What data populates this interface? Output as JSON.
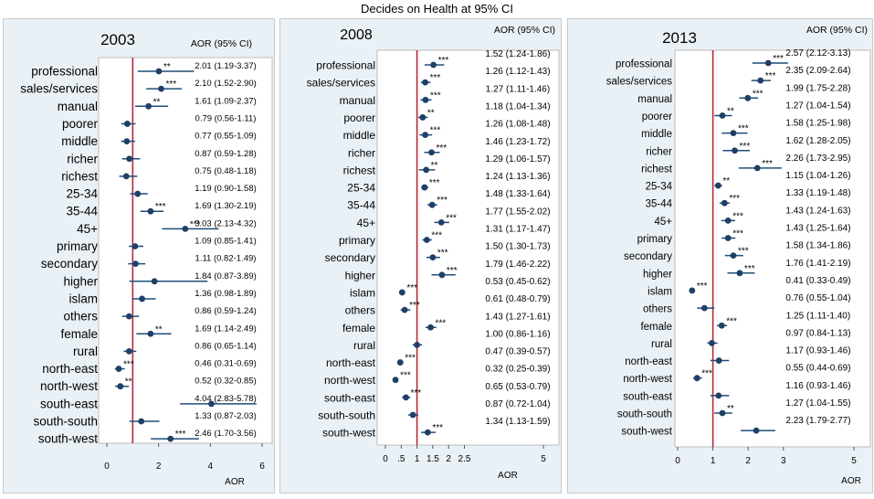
{
  "title": "Decides on Health at 95% CI",
  "chart_data": [
    {
      "type": "forest",
      "panel_title": "2003",
      "ci_header": "AOR (95% CI)",
      "xlabel": "AOR",
      "xlim": [
        0,
        6
      ],
      "xticks": [
        "0",
        "2",
        "4",
        "6"
      ],
      "reference_line": 1,
      "categories": [
        "professional",
        "sales/services",
        "manual",
        "poorer",
        "middle",
        "richer",
        "richest",
        "25-34",
        "35-44",
        "45+",
        "primary",
        "secondary",
        "higher",
        "islam",
        "others",
        "female",
        "rural",
        "north-east",
        "north-west",
        "south-east",
        "south-south",
        "south-west"
      ],
      "aor": [
        2.01,
        2.1,
        1.61,
        0.79,
        0.77,
        0.87,
        0.75,
        1.19,
        1.69,
        3.03,
        1.09,
        1.11,
        1.84,
        1.36,
        0.86,
        1.69,
        0.86,
        0.46,
        0.52,
        4.04,
        1.33,
        2.46
      ],
      "lower": [
        1.19,
        1.52,
        1.09,
        0.56,
        0.55,
        0.59,
        0.48,
        0.9,
        1.3,
        2.13,
        0.85,
        0.82,
        0.87,
        0.98,
        0.59,
        1.14,
        0.65,
        0.31,
        0.32,
        2.83,
        0.87,
        1.7
      ],
      "upper": [
        3.37,
        2.9,
        2.37,
        1.11,
        1.09,
        1.28,
        1.18,
        1.58,
        2.19,
        4.32,
        1.41,
        1.49,
        3.89,
        1.89,
        1.24,
        2.49,
        1.14,
        0.69,
        0.85,
        5.78,
        2.03,
        3.56
      ],
      "stars": [
        "**",
        "***",
        "**",
        "",
        "",
        "",
        "",
        "",
        "***",
        "***",
        "",
        "",
        "",
        "",
        "",
        "**",
        "",
        "***",
        "**",
        "",
        "",
        "***"
      ],
      "ci_labels": [
        "2.01 (1.19-3.37)",
        "2.10 (1.52-2.90)",
        "1.61 (1.09-2.37)",
        "0.79 (0.56-1.11)",
        "0.77 (0.55-1.09)",
        "0.87 (0.59-1.28)",
        "0.75 (0.48-1.18)",
        "1.19 (0.90-1.58)",
        "1.69 (1.30-2.19)",
        "3.03 (2.13-4.32)",
        "1.09 (0.85-1.41)",
        "1.11 (0.82-1.49)",
        "1.84 (0.87-3.89)",
        "1.36 (0.98-1.89)",
        "0.86 (0.59-1.24)",
        "1.69 (1.14-2.49)",
        "0.86 (0.65-1.14)",
        "0.46 (0.31-0.69)",
        "0.52 (0.32-0.85)",
        "4.04 (2.83-5.78)",
        "1.33 (0.87-2.03)",
        "2.46 (1.70-3.56)"
      ]
    },
    {
      "type": "forest",
      "panel_title": "2008",
      "ci_header": "AOR (95% CI)",
      "xlabel": "AOR",
      "xlim": [
        0,
        5
      ],
      "xticks": [
        "0",
        ".5",
        "1",
        "1.5",
        "2",
        "2.5",
        "5"
      ],
      "reference_line": 1,
      "categories": [
        "professional",
        "sales/services",
        "manual",
        "poorer",
        "middle",
        "richer",
        "richest",
        "25-34",
        "35-44",
        "45+",
        "primary",
        "secondary",
        "higher",
        "islam",
        "others",
        "female",
        "rural",
        "north-east",
        "north-west",
        "south-east",
        "south-south",
        "south-west"
      ],
      "aor": [
        1.52,
        1.26,
        1.27,
        1.18,
        1.26,
        1.46,
        1.29,
        1.24,
        1.48,
        1.77,
        1.31,
        1.5,
        1.79,
        0.53,
        0.61,
        1.43,
        1.0,
        0.47,
        0.32,
        0.65,
        0.87,
        1.34
      ],
      "lower": [
        1.24,
        1.12,
        1.11,
        1.04,
        1.08,
        1.23,
        1.06,
        1.13,
        1.33,
        1.55,
        1.17,
        1.3,
        1.46,
        0.45,
        0.48,
        1.27,
        0.86,
        0.39,
        0.25,
        0.53,
        0.72,
        1.13
      ],
      "upper": [
        1.86,
        1.43,
        1.46,
        1.34,
        1.48,
        1.72,
        1.57,
        1.36,
        1.64,
        2.02,
        1.47,
        1.73,
        2.22,
        0.62,
        0.79,
        1.61,
        1.16,
        0.57,
        0.39,
        0.79,
        1.04,
        1.59
      ],
      "stars": [
        "***",
        "***",
        "***",
        "**",
        "***",
        "***",
        "**",
        "***",
        "***",
        "***",
        "***",
        "***",
        "***",
        "***",
        "***",
        "***",
        "",
        "***",
        "***",
        "***",
        "",
        "***"
      ],
      "ci_labels": [
        "1.52 (1.24-1.86)",
        "1.26 (1.12-1.43)",
        "1.27 (1.11-1.46)",
        "1.18 (1.04-1.34)",
        "1.26 (1.08-1.48)",
        "1.46 (1.23-1.72)",
        "1.29 (1.06-1.57)",
        "1.24 (1.13-1.36)",
        "1.48 (1.33-1.64)",
        "1.77 (1.55-2.02)",
        "1.31 (1.17-1.47)",
        "1.50 (1.30-1.73)",
        "1.79 (1.46-2.22)",
        "0.53 (0.45-0.62)",
        "0.61 (0.48-0.79)",
        "1.43 (1.27-1.61)",
        "1.00 (0.86-1.16)",
        "0.47 (0.39-0.57)",
        "0.32 (0.25-0.39)",
        "0.65 (0.53-0.79)",
        "0.87 (0.72-1.04)",
        "1.34 (1.13-1.59)"
      ]
    },
    {
      "type": "forest",
      "panel_title": "2013",
      "ci_header": "AOR (95% CI)",
      "xlabel": "AOR",
      "xlim": [
        0,
        5
      ],
      "xticks": [
        "0",
        "1",
        "2",
        "3",
        "5"
      ],
      "reference_line": 1,
      "categories": [
        "professional",
        "sales/services",
        "manual",
        "poorer",
        "middle",
        "richer",
        "richest",
        "25-34",
        "35-44",
        "45+",
        "primary",
        "secondary",
        "higher",
        "islam",
        "others",
        "female",
        "rural",
        "north-east",
        "north-west",
        "south-east",
        "south-south",
        "south-west"
      ],
      "aor": [
        2.57,
        2.35,
        1.99,
        1.27,
        1.58,
        1.62,
        2.26,
        1.15,
        1.33,
        1.43,
        1.43,
        1.58,
        1.76,
        0.41,
        0.76,
        1.25,
        0.97,
        1.17,
        0.55,
        1.16,
        1.27,
        2.23
      ],
      "lower": [
        2.12,
        2.09,
        1.75,
        1.04,
        1.25,
        1.28,
        1.73,
        1.04,
        1.19,
        1.24,
        1.25,
        1.34,
        1.41,
        0.33,
        0.55,
        1.11,
        0.84,
        0.93,
        0.44,
        0.93,
        1.04,
        1.79
      ],
      "upper": [
        3.13,
        2.64,
        2.28,
        1.54,
        1.98,
        2.05,
        2.95,
        1.26,
        1.48,
        1.63,
        1.64,
        1.86,
        2.19,
        0.49,
        1.04,
        1.4,
        1.13,
        1.46,
        0.69,
        1.46,
        1.55,
        2.77
      ],
      "stars": [
        "***",
        "***",
        "***",
        "**",
        "***",
        "***",
        "***",
        "**",
        "***",
        "***",
        "***",
        "***",
        "***",
        "***",
        "",
        "***",
        "",
        "",
        "***",
        "",
        "**",
        ""
      ],
      "ci_labels": [
        "2.57 (2.12-3.13)",
        "2.35 (2.09-2.64)",
        "1.99 (1.75-2.28)",
        "1.27 (1.04-1.54)",
        "1.58 (1.25-1.98)",
        "1.62 (1.28-2.05)",
        "2.26 (1.73-2.95)",
        "1.15 (1.04-1.26)",
        "1.33 (1.19-1.48)",
        "1.43 (1.24-1.63)",
        "1.43 (1.25-1.64)",
        "1.58 (1.34-1.86)",
        "1.76 (1.41-2.19)",
        "0.41 (0.33-0.49)",
        "0.76 (0.55-1.04)",
        "1.25 (1.11-1.40)",
        "0.97 (0.84-1.13)",
        "1.17 (0.93-1.46)",
        "0.55 (0.44-0.69)",
        "1.16 (0.93-1.46)",
        "1.27 (1.04-1.55)",
        "2.23 (1.79-2.77)"
      ]
    }
  ]
}
